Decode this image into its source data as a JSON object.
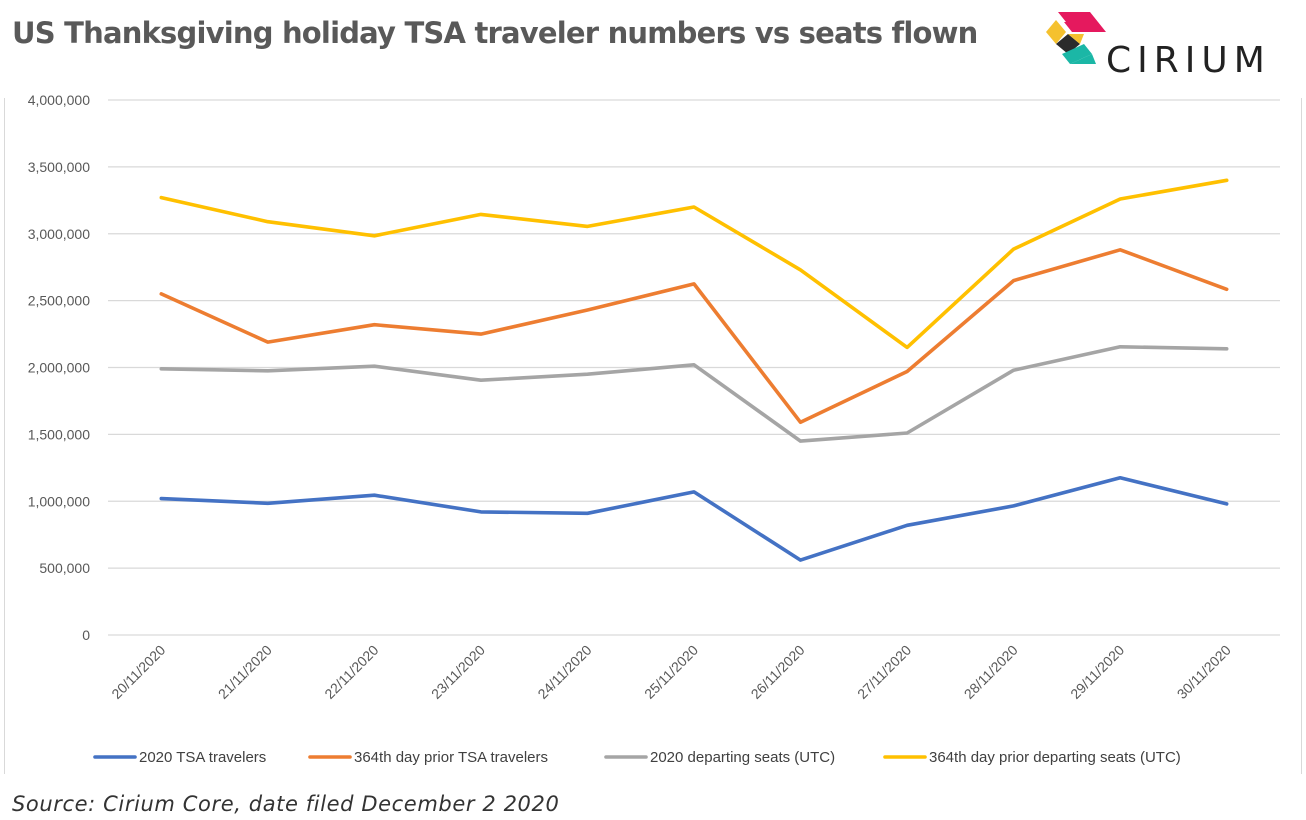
{
  "header": {
    "title": "US Thanksgiving holiday TSA traveler numbers vs seats flown",
    "brand": "CIRIUM"
  },
  "footer": {
    "source": "Source: Cirium Core, date filed December 2 2020"
  },
  "colors": {
    "gridline": "#d9d9d9",
    "axis_text": "#595959",
    "logo_yellow": "#F5C12E",
    "logo_pink": "#E5195E",
    "logo_teal": "#1BB7A6",
    "logo_dark": "#2B2B2B"
  },
  "chart_data": {
    "type": "line",
    "title": "US Thanksgiving holiday TSA traveler numbers vs seats flown",
    "xlabel": "",
    "ylabel": "",
    "categories": [
      "20/11/2020",
      "21/11/2020",
      "22/11/2020",
      "23/11/2020",
      "24/11/2020",
      "25/11/2020",
      "26/11/2020",
      "27/11/2020",
      "28/11/2020",
      "29/11/2020",
      "30/11/2020"
    ],
    "ylim": [
      0,
      4000000
    ],
    "yticks": [
      0,
      500000,
      1000000,
      1500000,
      2000000,
      2500000,
      3000000,
      3500000,
      4000000
    ],
    "ytick_labels": [
      "0",
      "500,000",
      "1,000,000",
      "1,500,000",
      "2,000,000",
      "2,500,000",
      "3,000,000",
      "3,500,000",
      "4,000,000"
    ],
    "grid": true,
    "legend_position": "bottom",
    "series": [
      {
        "name": "2020 TSA travelers",
        "color": "#4472C4",
        "values": [
          1020000,
          985000,
          1045000,
          920000,
          910000,
          1070000,
          560000,
          820000,
          965000,
          1175000,
          980000
        ]
      },
      {
        "name": "364th day prior TSA travelers",
        "color": "#ED7D31",
        "values": [
          2550000,
          2190000,
          2320000,
          2250000,
          2430000,
          2625000,
          1590000,
          1970000,
          2650000,
          2880000,
          2585000
        ]
      },
      {
        "name": "2020 departing seats (UTC)",
        "color": "#A5A5A5",
        "values": [
          1990000,
          1975000,
          2010000,
          1905000,
          1950000,
          2020000,
          1450000,
          1510000,
          1980000,
          2155000,
          2140000
        ]
      },
      {
        "name": "364th day prior departing seats (UTC)",
        "color": "#FFC000",
        "values": [
          3270000,
          3090000,
          2985000,
          3145000,
          3055000,
          3200000,
          2730000,
          2150000,
          2885000,
          3260000,
          3400000
        ]
      }
    ]
  }
}
